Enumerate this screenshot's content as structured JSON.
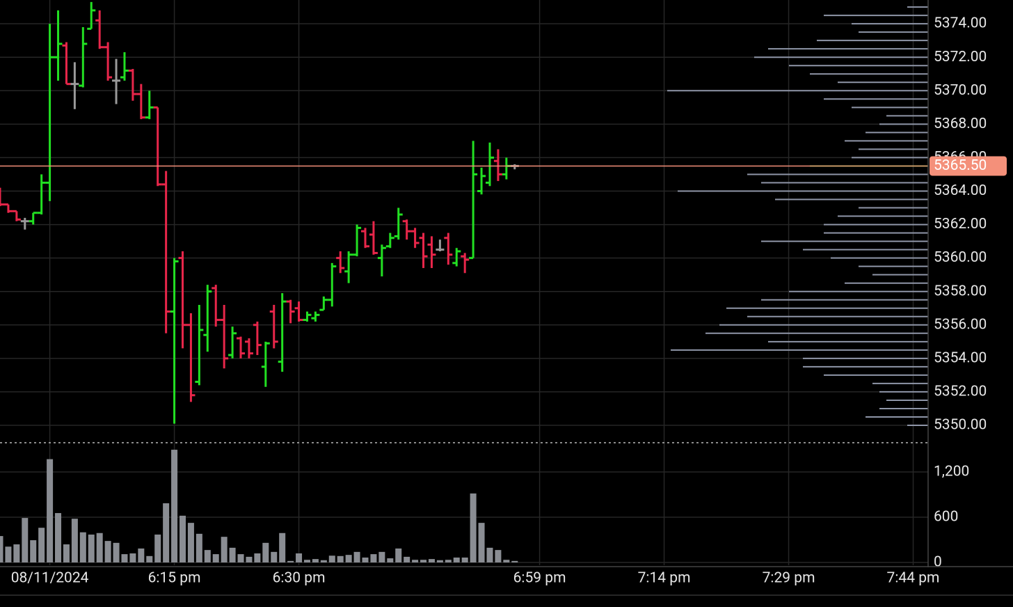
{
  "chart_data": [
    {
      "type": "ohlc",
      "x": [
        1074,
        1075,
        1076,
        1077,
        1078,
        1079,
        1080,
        1081,
        1082,
        1083,
        1084,
        1085,
        1086,
        1087,
        1088,
        1089,
        1090,
        1091,
        1092,
        1093,
        1094,
        1095,
        1096,
        1097,
        1098,
        1099,
        1100,
        1101,
        1102,
        1103,
        1104,
        1105,
        1106,
        1107,
        1108,
        1109,
        1110,
        1111,
        1112,
        1113,
        1114,
        1115,
        1116,
        1117,
        1118,
        1119,
        1120,
        1121,
        1122,
        1123,
        1124,
        1125,
        1126,
        1127,
        1128,
        1129,
        1130,
        1131,
        1132,
        1133,
        1134,
        1135,
        1136
      ],
      "open": [
        5364.0,
        5363.2,
        5362.8,
        5362.2,
        5362.2,
        5362.7,
        5364.5,
        5372.0,
        5372.7,
        5370.4,
        5370.3,
        5373.7,
        5374.2,
        5372.6,
        5370.6,
        5370.8,
        5371.2,
        5369.8,
        5368.4,
        5369.0,
        5364.4,
        5356.8,
        5360.0,
        5356.0,
        5352.6,
        5355.4,
        5358.2,
        5356.3,
        5354.2,
        5355.2,
        5355.0,
        5356.0,
        5353.5,
        5356.8,
        5353.8,
        5357.4,
        5357.0,
        5356.3,
        5356.4,
        5356.9,
        5357.5,
        5360.0,
        5359.2,
        5360.2,
        5361.6,
        5361.4,
        5360.0,
        5360.7,
        5361.3,
        5362.2,
        5361.6,
        5361.2,
        5360.8,
        5360.5,
        5361.2,
        5359.7,
        5360.1,
        5360.0,
        5364.0,
        5364.5,
        5365.8,
        5365.0,
        5365.5
      ],
      "high": [
        5364.2,
        5363.2,
        5362.8,
        5362.4,
        5362.7,
        5365.0,
        5374.0,
        5374.8,
        5372.9,
        5371.7,
        5373.8,
        5375.3,
        5374.8,
        5372.9,
        5371.9,
        5372.3,
        5371.3,
        5370.4,
        5370.0,
        5369.0,
        5365.2,
        5360.0,
        5360.4,
        5356.7,
        5357.2,
        5358.4,
        5358.4,
        5357.2,
        5355.9,
        5355.3,
        5355.2,
        5356.2,
        5355.0,
        5357.2,
        5357.9,
        5357.5,
        5357.4,
        5356.8,
        5356.8,
        5357.7,
        5359.7,
        5360.4,
        5360.4,
        5362.0,
        5361.8,
        5362.2,
        5360.8,
        5361.5,
        5363.0,
        5362.3,
        5361.8,
        5361.5,
        5361.3,
        5361.1,
        5361.5,
        5360.6,
        5360.3,
        5367.0,
        5365.4,
        5366.9,
        5366.5,
        5366.0,
        5365.6
      ],
      "low": [
        5363.1,
        5362.7,
        5362.2,
        5361.7,
        5362.0,
        5362.6,
        5363.4,
        5370.6,
        5370.4,
        5368.9,
        5370.2,
        5373.7,
        5372.5,
        5370.6,
        5369.2,
        5370.6,
        5369.4,
        5368.3,
        5368.3,
        5364.3,
        5355.5,
        5350.1,
        5354.6,
        5351.4,
        5352.4,
        5354.4,
        5355.9,
        5353.4,
        5354.0,
        5354.0,
        5354.0,
        5354.2,
        5352.3,
        5354.6,
        5353.2,
        5356.1,
        5356.2,
        5356.2,
        5356.2,
        5356.9,
        5357.1,
        5359.1,
        5358.5,
        5360.1,
        5360.6,
        5360.2,
        5358.9,
        5360.6,
        5361.1,
        5361.1,
        5360.6,
        5359.4,
        5359.4,
        5360.4,
        5359.6,
        5359.5,
        5359.1,
        5360.0,
        5363.8,
        5364.3,
        5364.6,
        5364.7,
        5365.3
      ],
      "close": [
        5363.2,
        5362.8,
        5362.3,
        5362.2,
        5362.7,
        5364.5,
        5372.0,
        5372.8,
        5370.4,
        5370.4,
        5372.8,
        5374.8,
        5372.6,
        5370.8,
        5370.6,
        5371.2,
        5369.8,
        5368.4,
        5369.0,
        5364.4,
        5356.8,
        5359.8,
        5356.0,
        5351.8,
        5355.7,
        5358.0,
        5356.3,
        5354.0,
        5355.5,
        5354.3,
        5354.3,
        5354.8,
        5354.9,
        5355.0,
        5357.4,
        5356.8,
        5356.3,
        5356.6,
        5356.6,
        5357.5,
        5359.5,
        5359.4,
        5360.2,
        5361.8,
        5360.7,
        5360.3,
        5360.6,
        5361.2,
        5362.6,
        5361.6,
        5360.9,
        5360.1,
        5360.2,
        5360.5,
        5360.2,
        5360.4,
        5359.9,
        5365.0,
        5364.9,
        5366.0,
        5365.0,
        5365.5,
        5365.5
      ],
      "up_color": "#22e022",
      "down_color": "#e8264a",
      "flat_color": "#9a9a9a",
      "xlim": [
        1074,
        1185.8
      ],
      "ylim": [
        5348.96,
        5375.42
      ],
      "yticks": [
        {
          "value": 5350,
          "label": "5350.00"
        },
        {
          "value": 5352,
          "label": "5352.00"
        },
        {
          "value": 5354,
          "label": "5354.00"
        },
        {
          "value": 5356,
          "label": "5356.00"
        },
        {
          "value": 5358,
          "label": "5358.00"
        },
        {
          "value": 5360,
          "label": "5360.00"
        },
        {
          "value": 5362,
          "label": "5362.00"
        },
        {
          "value": 5364,
          "label": "5364.00"
        },
        {
          "value": 5366,
          "label": "5366.00"
        },
        {
          "value": 5368,
          "label": "5368.00"
        },
        {
          "value": 5370,
          "label": "5370.00"
        },
        {
          "value": 5372,
          "label": "5372.00"
        },
        {
          "value": 5374,
          "label": "5374.00"
        }
      ],
      "last_price": {
        "value": 5365.5,
        "label": "5365.50",
        "color": "#f4907a"
      },
      "volume_profile": {
        "color": "#8f96a8",
        "current_color": "#22c022",
        "prices": [
          5375,
          5374.5,
          5374,
          5373.5,
          5373,
          5372.5,
          5372,
          5371.5,
          5371,
          5370.5,
          5370,
          5369.5,
          5369,
          5368.5,
          5368,
          5367.5,
          5367,
          5366.5,
          5366,
          5365.5,
          5365,
          5364.5,
          5364,
          5363.5,
          5363,
          5362.5,
          5362,
          5361.5,
          5361,
          5360.5,
          5360,
          5359.5,
          5359,
          5358.5,
          5358,
          5357.5,
          5357,
          5356.5,
          5356,
          5355.5,
          5355,
          5354.5,
          5354,
          5353.5,
          5353,
          5352.5,
          5352,
          5351.5,
          5351,
          5350.5,
          5350
        ],
        "values": [
          30,
          150,
          110,
          100,
          160,
          230,
          250,
          200,
          170,
          130,
          375,
          150,
          110,
          60,
          70,
          90,
          120,
          100,
          110,
          170,
          260,
          240,
          360,
          220,
          100,
          130,
          150,
          150,
          240,
          180,
          140,
          100,
          80,
          120,
          200,
          240,
          290,
          260,
          300,
          320,
          230,
          370,
          180,
          180,
          150,
          80,
          70,
          60,
          70,
          90,
          30
        ]
      }
    },
    {
      "type": "bar",
      "x": [
        1074,
        1075,
        1076,
        1077,
        1078,
        1079,
        1080,
        1081,
        1082,
        1083,
        1084,
        1085,
        1086,
        1087,
        1088,
        1089,
        1090,
        1091,
        1092,
        1093,
        1094,
        1095,
        1096,
        1097,
        1098,
        1099,
        1100,
        1101,
        1102,
        1103,
        1104,
        1105,
        1106,
        1107,
        1108,
        1109,
        1110,
        1111,
        1112,
        1113,
        1114,
        1115,
        1116,
        1117,
        1118,
        1119,
        1120,
        1121,
        1122,
        1123,
        1124,
        1125,
        1126,
        1127,
        1128,
        1129,
        1130,
        1131,
        1132,
        1133,
        1134,
        1135,
        1136
      ],
      "values": [
        350,
        210,
        240,
        590,
        295,
        460,
        1370,
        655,
        240,
        580,
        400,
        370,
        390,
        285,
        260,
        110,
        120,
        185,
        85,
        370,
        785,
        1495,
        620,
        525,
        380,
        165,
        110,
        340,
        195,
        110,
        75,
        120,
        260,
        140,
        390,
        20,
        120,
        35,
        45,
        30,
        90,
        85,
        100,
        140,
        65,
        110,
        140,
        55,
        185,
        75,
        35,
        35,
        45,
        30,
        35,
        65,
        65,
        915,
        525,
        195,
        165,
        35,
        20
      ],
      "color": "#8a8d93",
      "xlim": [
        1074,
        1185.8
      ],
      "ylim": [
        0,
        1588
      ],
      "yticks": [
        0,
        600,
        {
          "value": 1200,
          "label": "1,200"
        }
      ],
      "xticks": [
        {
          "value": 1080,
          "label": "08/11/2024"
        },
        {
          "value": 1095,
          "label": "6:15 pm"
        },
        {
          "value": 1110,
          "label": "6:30 pm"
        },
        {
          "value": 1139,
          "label": "6:59 pm"
        },
        {
          "value": 1154,
          "label": "7:14 pm"
        },
        {
          "value": 1169,
          "label": "7:29 pm"
        },
        {
          "value": 1184,
          "label": "7:44 pm"
        }
      ]
    }
  ]
}
